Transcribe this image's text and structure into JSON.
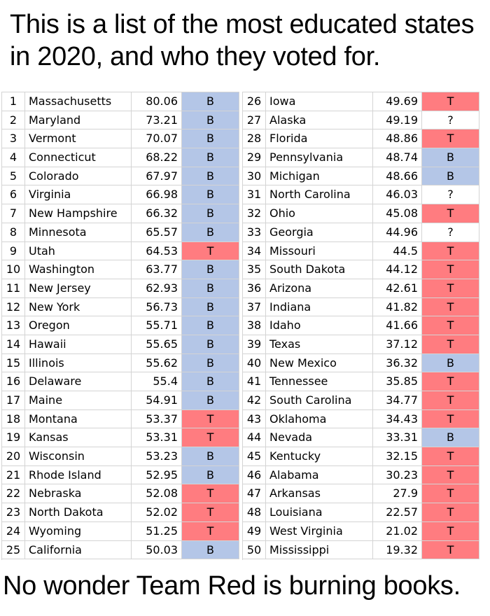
{
  "title": "This is a list of the most educated states in 2020, and who they voted for.",
  "caption": "No wonder Team Red is burning books.",
  "colors": {
    "B": "#b4c6e7",
    "T": "#ff7c80",
    "?": "#ffffff",
    "grid": "#d4d4d4"
  },
  "left_rows": [
    {
      "rank": "1",
      "state": "Massachusetts",
      "pct": "80.06",
      "vote": "B"
    },
    {
      "rank": "2",
      "state": "Maryland",
      "pct": "73.21",
      "vote": "B"
    },
    {
      "rank": "3",
      "state": "Vermont",
      "pct": "70.07",
      "vote": "B"
    },
    {
      "rank": "4",
      "state": "Connecticut",
      "pct": "68.22",
      "vote": "B"
    },
    {
      "rank": "5",
      "state": "Colorado",
      "pct": "67.97",
      "vote": "B"
    },
    {
      "rank": "6",
      "state": "Virginia",
      "pct": "66.98",
      "vote": "B"
    },
    {
      "rank": "7",
      "state": "New Hampshire",
      "pct": "66.32",
      "vote": "B"
    },
    {
      "rank": "8",
      "state": "Minnesota",
      "pct": "65.57",
      "vote": "B"
    },
    {
      "rank": "9",
      "state": "Utah",
      "pct": "64.53",
      "vote": "T"
    },
    {
      "rank": "10",
      "state": "Washington",
      "pct": "63.77",
      "vote": "B"
    },
    {
      "rank": "11",
      "state": "New Jersey",
      "pct": "62.93",
      "vote": "B"
    },
    {
      "rank": "12",
      "state": "New York",
      "pct": "56.73",
      "vote": "B"
    },
    {
      "rank": "13",
      "state": "Oregon",
      "pct": "55.71",
      "vote": "B"
    },
    {
      "rank": "14",
      "state": "Hawaii",
      "pct": "55.65",
      "vote": "B"
    },
    {
      "rank": "15",
      "state": "Illinois",
      "pct": "55.62",
      "vote": "B"
    },
    {
      "rank": "16",
      "state": "Delaware",
      "pct": "55.4",
      "vote": "B"
    },
    {
      "rank": "17",
      "state": "Maine",
      "pct": "54.91",
      "vote": "B"
    },
    {
      "rank": "18",
      "state": "Montana",
      "pct": "53.37",
      "vote": "T"
    },
    {
      "rank": "19",
      "state": "Kansas",
      "pct": "53.31",
      "vote": "T"
    },
    {
      "rank": "20",
      "state": "Wisconsin",
      "pct": "53.23",
      "vote": "B"
    },
    {
      "rank": "21",
      "state": "Rhode Island",
      "pct": "52.95",
      "vote": "B"
    },
    {
      "rank": "22",
      "state": "Nebraska",
      "pct": "52.08",
      "vote": "T"
    },
    {
      "rank": "23",
      "state": "North Dakota",
      "pct": "52.02",
      "vote": "T"
    },
    {
      "rank": "24",
      "state": "Wyoming",
      "pct": "51.25",
      "vote": "T"
    },
    {
      "rank": "25",
      "state": "California",
      "pct": "50.03",
      "vote": "B"
    }
  ],
  "right_rows": [
    {
      "rank": "26",
      "state": "Iowa",
      "pct": "49.69",
      "vote": "T"
    },
    {
      "rank": "27",
      "state": "Alaska",
      "pct": "49.19",
      "vote": "?"
    },
    {
      "rank": "28",
      "state": "Florida",
      "pct": "48.86",
      "vote": "T"
    },
    {
      "rank": "29",
      "state": "Pennsylvania",
      "pct": "48.74",
      "vote": "B"
    },
    {
      "rank": "30",
      "state": "Michigan",
      "pct": "48.66",
      "vote": "B"
    },
    {
      "rank": "31",
      "state": "North Carolina",
      "pct": "46.03",
      "vote": "?"
    },
    {
      "rank": "32",
      "state": "Ohio",
      "pct": "45.08",
      "vote": "T"
    },
    {
      "rank": "33",
      "state": "Georgia",
      "pct": "44.96",
      "vote": "?"
    },
    {
      "rank": "34",
      "state": "Missouri",
      "pct": "44.5",
      "vote": "T"
    },
    {
      "rank": "35",
      "state": "South Dakota",
      "pct": "44.12",
      "vote": "T"
    },
    {
      "rank": "36",
      "state": "Arizona",
      "pct": "42.61",
      "vote": "T"
    },
    {
      "rank": "37",
      "state": "Indiana",
      "pct": "41.82",
      "vote": "T"
    },
    {
      "rank": "38",
      "state": "Idaho",
      "pct": "41.66",
      "vote": "T"
    },
    {
      "rank": "39",
      "state": "Texas",
      "pct": "37.12",
      "vote": "T"
    },
    {
      "rank": "40",
      "state": "New Mexico",
      "pct": "36.32",
      "vote": "B"
    },
    {
      "rank": "41",
      "state": "Tennessee",
      "pct": "35.85",
      "vote": "T"
    },
    {
      "rank": "42",
      "state": "South Carolina",
      "pct": "34.77",
      "vote": "T"
    },
    {
      "rank": "43",
      "state": "Oklahoma",
      "pct": "34.43",
      "vote": "T"
    },
    {
      "rank": "44",
      "state": "Nevada",
      "pct": "33.31",
      "vote": "B"
    },
    {
      "rank": "45",
      "state": "Kentucky",
      "pct": "32.15",
      "vote": "T"
    },
    {
      "rank": "46",
      "state": "Alabama",
      "pct": "30.23",
      "vote": "T"
    },
    {
      "rank": "47",
      "state": "Arkansas",
      "pct": "27.9",
      "vote": "T"
    },
    {
      "rank": "48",
      "state": "Louisiana",
      "pct": "22.57",
      "vote": "T"
    },
    {
      "rank": "49",
      "state": "West Virginia",
      "pct": "21.02",
      "vote": "T"
    },
    {
      "rank": "50",
      "state": "Mississippi",
      "pct": "19.32",
      "vote": "T"
    }
  ]
}
